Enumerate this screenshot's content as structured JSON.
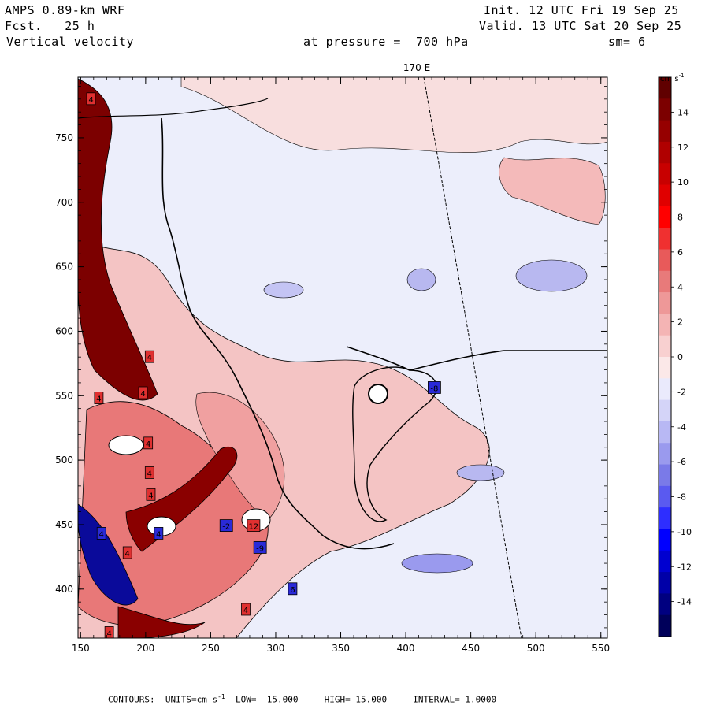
{
  "header": {
    "model": "AMPS 0.89-km WRF",
    "init": "Init. 12 UTC Fri 19 Sep 25",
    "fcst_label": "Fcst.",
    "fcst_value": "25 h",
    "valid": "Valid. 13 UTC Sat 20 Sep 25",
    "field": "Vertical velocity",
    "pressure_label": "at pressure =",
    "pressure_value": "700 hPa",
    "smoothing": "sm= 6"
  },
  "map": {
    "meridian_label": "170 E",
    "x_ticks": [
      "150",
      "200",
      "250",
      "300",
      "350",
      "400",
      "450",
      "500",
      "550"
    ],
    "y_ticks": [
      "750",
      "700",
      "650",
      "600",
      "550",
      "500",
      "450",
      "400"
    ],
    "x_range": [
      148,
      555
    ],
    "y_range": [
      362,
      797
    ],
    "box_labels": [
      {
        "text": "4",
        "x": 158,
        "y": 780,
        "kind": "pos"
      },
      {
        "text": "4",
        "x": 203,
        "y": 580,
        "kind": "pos"
      },
      {
        "text": "4",
        "x": 198,
        "y": 552,
        "kind": "pos"
      },
      {
        "text": "4",
        "x": 164,
        "y": 548,
        "kind": "pos"
      },
      {
        "text": "4",
        "x": 202,
        "y": 513,
        "kind": "pos"
      },
      {
        "text": "4",
        "x": 203,
        "y": 490,
        "kind": "pos"
      },
      {
        "text": "4",
        "x": 204,
        "y": 473,
        "kind": "pos"
      },
      {
        "text": "4",
        "x": 166,
        "y": 443,
        "kind": "neg"
      },
      {
        "text": "4",
        "x": 210,
        "y": 443,
        "kind": "neg"
      },
      {
        "text": "4",
        "x": 186,
        "y": 428,
        "kind": "pos"
      },
      {
        "text": "4",
        "x": 277,
        "y": 384,
        "kind": "pos"
      },
      {
        "text": "4",
        "x": 172,
        "y": 366,
        "kind": "pos"
      },
      {
        "text": "-2",
        "x": 262,
        "y": 449,
        "kind": "neg"
      },
      {
        "text": "12",
        "x": 283,
        "y": 449,
        "kind": "pos"
      },
      {
        "text": "-9",
        "x": 288,
        "y": 432,
        "kind": "neg"
      },
      {
        "text": "6",
        "x": 313,
        "y": 400,
        "kind": "neg"
      },
      {
        "text": "-8",
        "x": 422,
        "y": 556,
        "kind": "neg"
      }
    ]
  },
  "colorbar": {
    "units": "cm s",
    "units_exp": "-1",
    "labels": [
      "14",
      "12",
      "10",
      "8",
      "6",
      "4",
      "2",
      "0",
      "-2",
      "-4",
      "-6",
      "-8",
      "-10",
      "-12",
      "-14"
    ],
    "colors": [
      "#00005a",
      "#000080",
      "#0000a8",
      "#0000d0",
      "#0000ff",
      "#2e2eff",
      "#5a5af0",
      "#7a7ae8",
      "#9a9aee",
      "#b8b8f4",
      "#d4d4f8",
      "#eaeafc",
      "#fbe8e8",
      "#f8d0d0",
      "#f4b4b4",
      "#ee9898",
      "#e87a7a",
      "#e85a5a",
      "#f03030",
      "#ff0000",
      "#e00000",
      "#c80000",
      "#b00000",
      "#960000",
      "#7c0000",
      "#600000"
    ]
  },
  "footer": {
    "contours_label": "CONTOURS:",
    "units": "UNITS=cm s",
    "units_exp": "-1",
    "low": "LOW= -15.000",
    "high": "HIGH= 15.000",
    "interval": "INTERVAL= 1.0000"
  }
}
